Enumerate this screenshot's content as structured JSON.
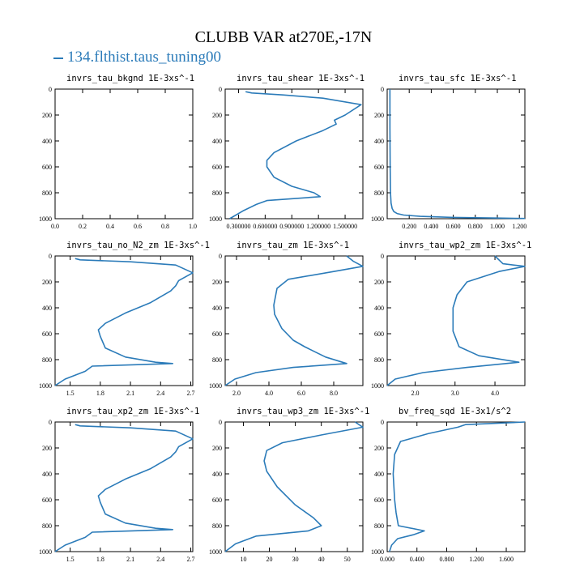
{
  "title": "CLUBB VAR at270E,-17N",
  "legend": {
    "label": "134.flthist.taus_tuning00",
    "color": "#2b7bb9"
  },
  "chart_data": [
    {
      "type": "line",
      "title": "invrs_tau_bkgnd",
      "units": "1E-3xs^-1",
      "xlim": [
        0,
        1
      ],
      "ylim": [
        1000,
        0
      ],
      "xticks": [
        0,
        0.2,
        0.4,
        0.6,
        0.8,
        1.0
      ],
      "xtick_labels": [
        "0.0",
        "0.2",
        "0.4",
        "0.6",
        "0.8",
        "1.0"
      ],
      "yticks": [
        0,
        200,
        400,
        600,
        800,
        1000
      ],
      "ytick_labels": [
        "0",
        "200",
        "400",
        "600",
        "800",
        "1000"
      ],
      "series": [
        {
          "x": [],
          "y": []
        }
      ]
    },
    {
      "type": "line",
      "title": "invrs_tau_shear",
      "units": "1E-3xs^-1",
      "xlim": [
        0.15,
        1.7
      ],
      "ylim": [
        1000,
        0
      ],
      "xticks": [
        0.3,
        0.6,
        0.9,
        1.2,
        1.5
      ],
      "xtick_labels": [
        "0.300000",
        "0.600000",
        "0.900000",
        "1.200000",
        "1.500000"
      ],
      "yticks": [
        0,
        200,
        400,
        600,
        800,
        1000
      ],
      "ytick_labels": [
        "0",
        "200",
        "400",
        "600",
        "800",
        "1000"
      ],
      "series": [
        {
          "x": [
            0.38,
            0.45,
            0.8,
            1.25,
            1.68,
            1.5,
            1.38,
            1.4,
            1.25,
            0.95,
            0.7,
            0.62,
            0.62,
            0.7,
            0.9,
            1.15,
            1.22,
            0.62,
            0.5,
            0.35,
            0.2
          ],
          "y": [
            20,
            30,
            45,
            70,
            120,
            200,
            240,
            270,
            320,
            400,
            490,
            550,
            600,
            680,
            750,
            800,
            830,
            860,
            890,
            940,
            1000
          ]
        }
      ]
    },
    {
      "type": "line",
      "title": "invrs_tau_sfc",
      "units": "1E-3xs^-1",
      "xlim": [
        0,
        1.25
      ],
      "ylim": [
        1000,
        0
      ],
      "xticks": [
        0.2,
        0.4,
        0.6,
        0.8,
        1.0,
        1.2
      ],
      "xtick_labels": [
        "0.200",
        "0.400",
        "0.600",
        "0.800",
        "1.000",
        "1.200"
      ],
      "yticks": [
        0,
        200,
        400,
        600,
        800,
        1000
      ],
      "ytick_labels": [
        "0",
        "200",
        "400",
        "600",
        "800",
        "1000"
      ],
      "series": [
        {
          "x": [
            0.025,
            0.025,
            0.027,
            0.03,
            0.035,
            0.045,
            0.06,
            0.09,
            0.15,
            0.3,
            0.6,
            1.0,
            1.25
          ],
          "y": [
            0,
            300,
            600,
            800,
            880,
            920,
            945,
            960,
            972,
            982,
            990,
            995,
            998
          ]
        }
      ]
    },
    {
      "type": "line",
      "title": "invrs_tau_no_N2_zm",
      "units": "1E-3xs^-1",
      "xlim": [
        1.35,
        2.72
      ],
      "ylim": [
        1000,
        0
      ],
      "xticks": [
        1.5,
        1.8,
        2.1,
        2.4,
        2.7
      ],
      "xtick_labels": [
        "1.5",
        "1.8",
        "2.1",
        "2.4",
        "2.7"
      ],
      "yticks": [
        0,
        200,
        400,
        600,
        800,
        1000
      ],
      "ytick_labels": [
        "0",
        "200",
        "400",
        "600",
        "800",
        "1000"
      ],
      "series": [
        {
          "x": [
            1.55,
            1.6,
            2.1,
            2.55,
            2.72,
            2.58,
            2.55,
            2.5,
            2.3,
            2.05,
            1.85,
            1.78,
            1.8,
            1.85,
            2.05,
            2.35,
            2.52,
            1.72,
            1.65,
            1.45,
            1.35
          ],
          "y": [
            20,
            30,
            45,
            70,
            130,
            190,
            230,
            270,
            360,
            440,
            520,
            570,
            620,
            710,
            780,
            820,
            830,
            850,
            890,
            950,
            1000
          ]
        }
      ]
    },
    {
      "type": "line",
      "title": "invrs_tau_zm",
      "units": "1E-3xs^-1",
      "xlim": [
        1.3,
        9.8
      ],
      "ylim": [
        1000,
        0
      ],
      "xticks": [
        2,
        4,
        6,
        8
      ],
      "xtick_labels": [
        "2.0",
        "4.0",
        "6.0",
        "8.0"
      ],
      "yticks": [
        0,
        200,
        400,
        600,
        800,
        1000
      ],
      "ytick_labels": [
        "0",
        "200",
        "400",
        "600",
        "800",
        "1000"
      ],
      "series": [
        {
          "x": [
            8.8,
            9.2,
            9.8,
            8.0,
            5.2,
            4.5,
            4.3,
            4.35,
            4.8,
            5.5,
            6.2,
            7.5,
            8.8,
            5.5,
            3.2,
            1.9,
            1.3
          ],
          "y": [
            0,
            40,
            80,
            120,
            180,
            250,
            380,
            450,
            560,
            650,
            700,
            780,
            830,
            860,
            900,
            950,
            1000
          ]
        }
      ]
    },
    {
      "type": "line",
      "title": "invrs_tau_wp2_zm",
      "units": "1E-3xs^-1",
      "xlim": [
        1.3,
        4.75
      ],
      "ylim": [
        1000,
        0
      ],
      "xticks": [
        2,
        3,
        4
      ],
      "xtick_labels": [
        "2.0",
        "3.0",
        "4.0"
      ],
      "yticks": [
        0,
        200,
        400,
        600,
        800,
        1000
      ],
      "ytick_labels": [
        "0",
        "200",
        "400",
        "600",
        "800",
        "1000"
      ],
      "series": [
        {
          "x": [
            4.0,
            4.2,
            4.75,
            4.1,
            3.3,
            3.05,
            2.95,
            2.95,
            3.1,
            3.6,
            4.6,
            3.3,
            2.2,
            1.5,
            1.3
          ],
          "y": [
            0,
            60,
            80,
            120,
            200,
            300,
            400,
            580,
            700,
            770,
            820,
            860,
            900,
            950,
            1000
          ]
        }
      ]
    },
    {
      "type": "line",
      "title": "invrs_tau_xp2_zm",
      "units": "1E-3xs^-1",
      "xlim": [
        1.35,
        2.72
      ],
      "ylim": [
        1000,
        0
      ],
      "xticks": [
        1.5,
        1.8,
        2.1,
        2.4,
        2.7
      ],
      "xtick_labels": [
        "1.5",
        "1.8",
        "2.1",
        "2.4",
        "2.7"
      ],
      "yticks": [
        0,
        200,
        400,
        600,
        800,
        1000
      ],
      "ytick_labels": [
        "0",
        "200",
        "400",
        "600",
        "800",
        "1000"
      ],
      "series": [
        {
          "x": [
            1.55,
            1.6,
            2.1,
            2.55,
            2.72,
            2.58,
            2.55,
            2.5,
            2.3,
            2.05,
            1.85,
            1.78,
            1.8,
            1.85,
            2.05,
            2.35,
            2.52,
            1.72,
            1.65,
            1.45,
            1.35
          ],
          "y": [
            20,
            30,
            45,
            70,
            130,
            190,
            230,
            270,
            360,
            440,
            520,
            570,
            620,
            710,
            780,
            820,
            830,
            850,
            890,
            950,
            1000
          ]
        }
      ]
    },
    {
      "type": "line",
      "title": "invrs_tau_wp3_zm",
      "units": "1E-3xs^-1",
      "xlim": [
        3,
        56
      ],
      "ylim": [
        1000,
        0
      ],
      "xticks": [
        10,
        20,
        30,
        40,
        50
      ],
      "xtick_labels": [
        "10",
        "20",
        "30",
        "40",
        "50"
      ],
      "yticks": [
        0,
        200,
        400,
        600,
        800,
        1000
      ],
      "ytick_labels": [
        "0",
        "200",
        "400",
        "600",
        "800",
        "1000"
      ],
      "series": [
        {
          "x": [
            53,
            56,
            40,
            25,
            19,
            18,
            19,
            23,
            30,
            37,
            40,
            35,
            15,
            7,
            3
          ],
          "y": [
            0,
            40,
            100,
            160,
            220,
            300,
            380,
            500,
            640,
            740,
            800,
            840,
            880,
            940,
            1000
          ]
        }
      ]
    },
    {
      "type": "line",
      "title": "bv_freq_sqd",
      "units": "1E-3x1/s^2",
      "xlim": [
        0,
        1.85
      ],
      "ylim": [
        1000,
        0
      ],
      "xticks": [
        0,
        0.4,
        0.8,
        1.2,
        1.6
      ],
      "xtick_labels": [
        "0.000",
        "0.400",
        "0.800",
        "1.200",
        "1.600"
      ],
      "yticks": [
        0,
        200,
        400,
        600,
        800,
        1000
      ],
      "ytick_labels": [
        "0",
        "200",
        "400",
        "600",
        "800",
        "1000"
      ],
      "series": [
        {
          "x": [
            1.85,
            1.05,
            0.95,
            0.55,
            0.18,
            0.1,
            0.08,
            0.1,
            0.12,
            0.15,
            0.5,
            0.35,
            0.14,
            0.06,
            0.03
          ],
          "y": [
            0,
            20,
            40,
            90,
            150,
            250,
            400,
            600,
            700,
            800,
            840,
            870,
            900,
            950,
            1000
          ]
        }
      ]
    }
  ]
}
